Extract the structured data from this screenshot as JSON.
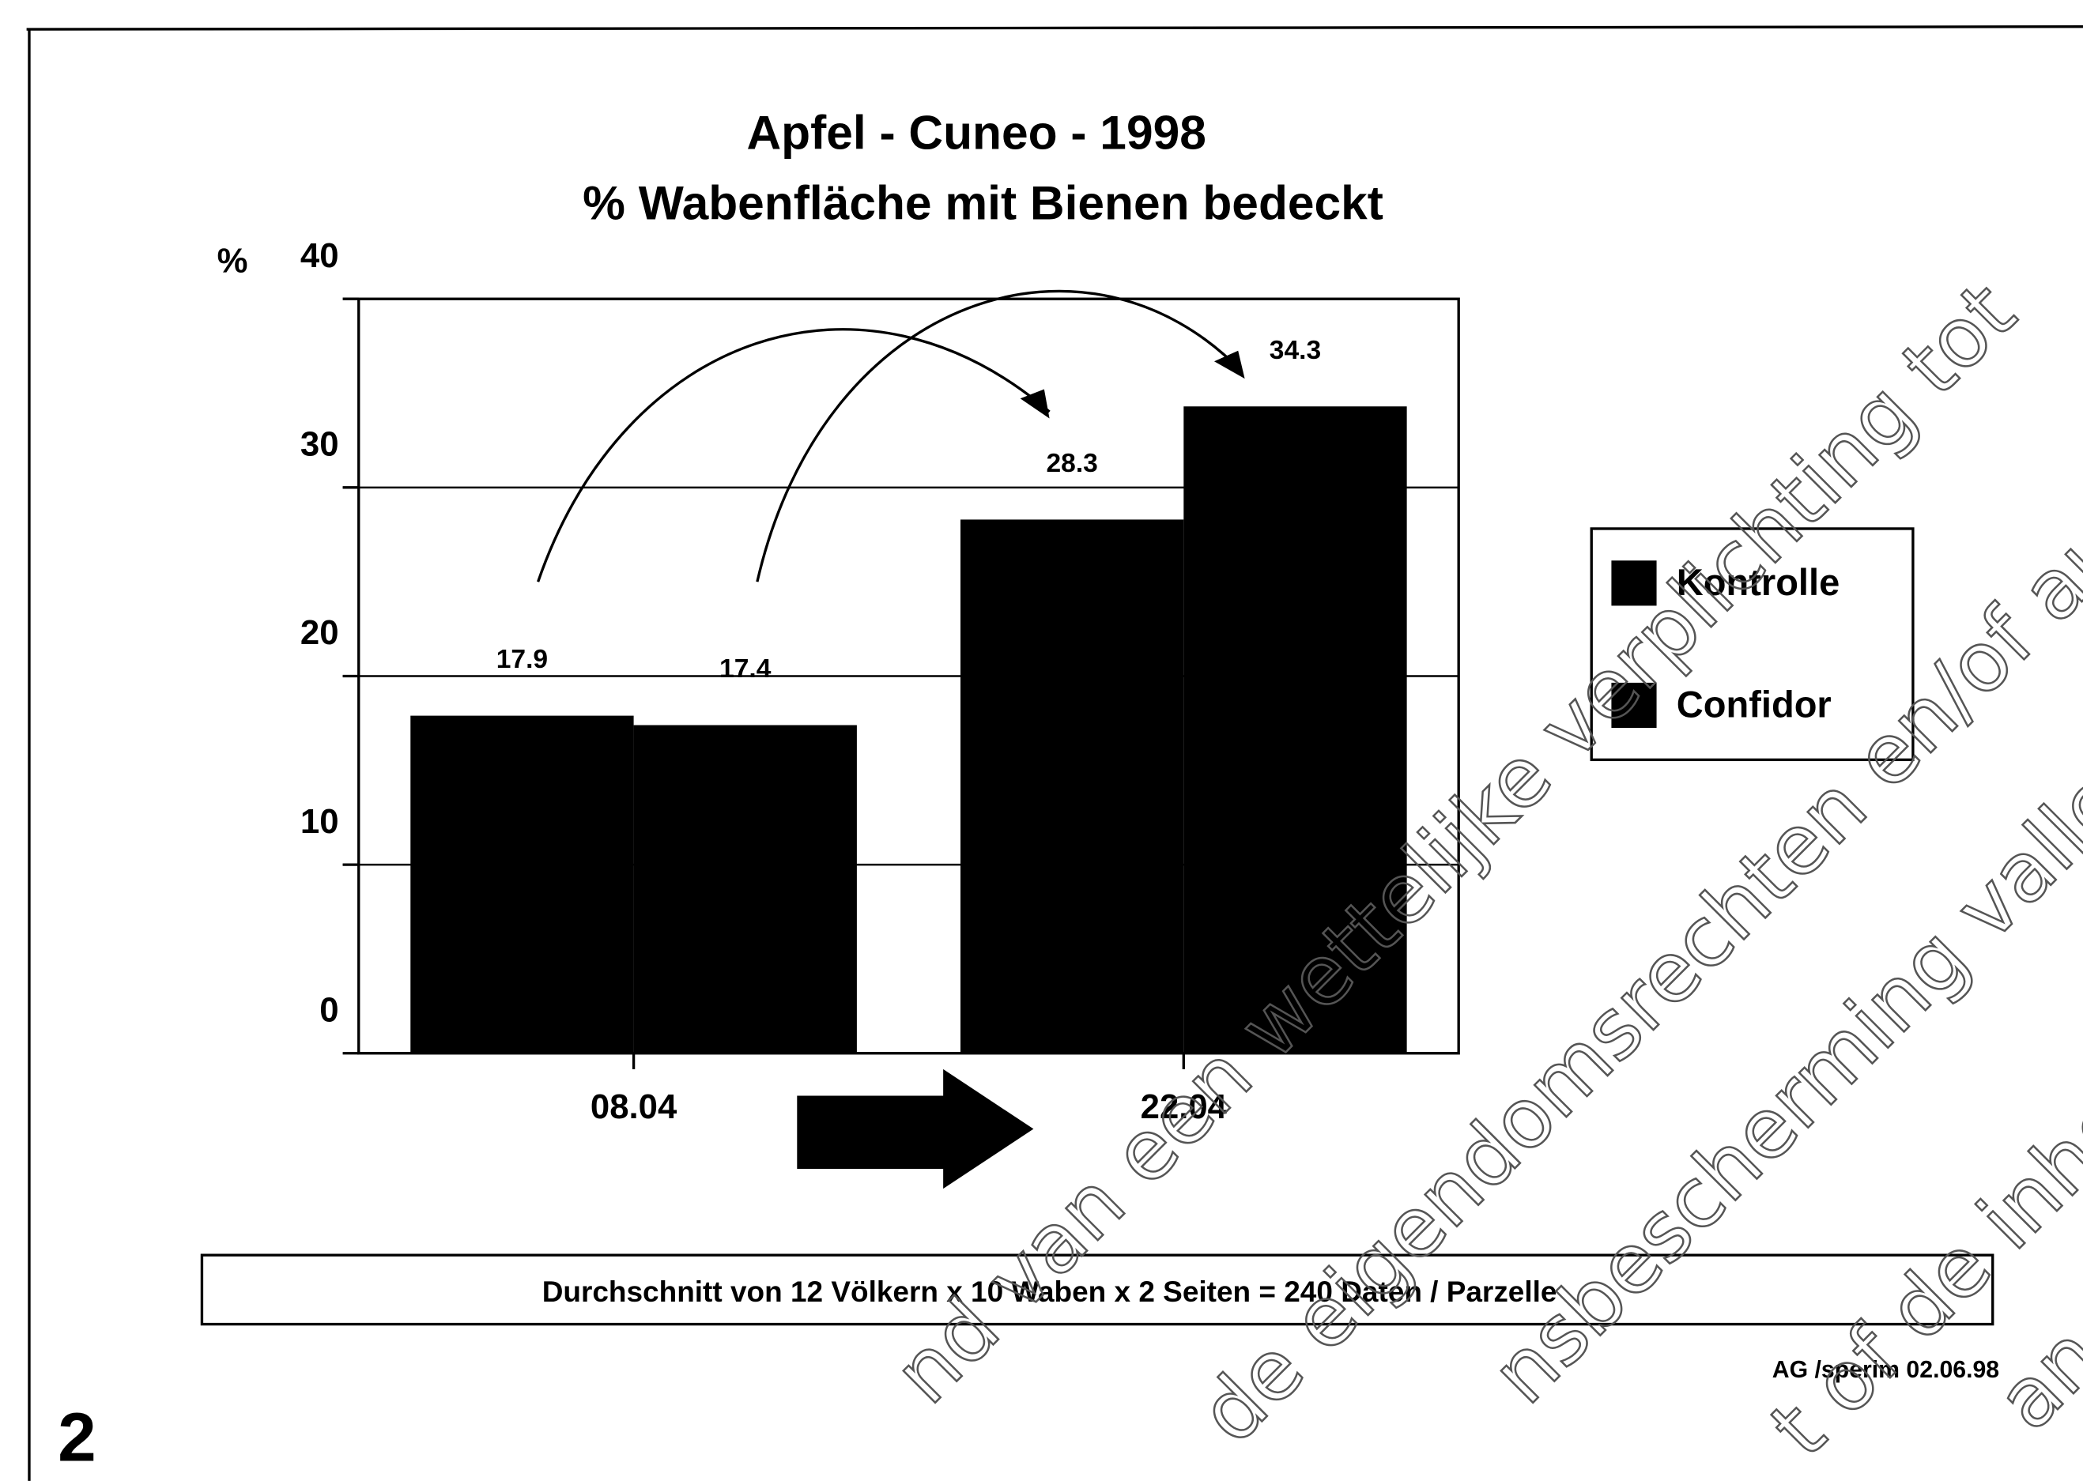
{
  "chart_data": {
    "type": "bar",
    "title": "Apfel - Cuneo - 1998",
    "subtitle": "% Wabenfläche mit Bienen bedeckt",
    "y_label": "%",
    "categories": [
      "08.04",
      "22.04"
    ],
    "series": [
      {
        "name": "Kontrolle",
        "color": "#000000",
        "values": [
          17.9,
          28.3
        ]
      },
      {
        "name": "Confidor",
        "color": "#000000",
        "values": [
          17.4,
          34.3
        ]
      }
    ],
    "ylim": [
      0,
      40
    ],
    "yticks": [
      0,
      10,
      20,
      30,
      40
    ],
    "grid": true,
    "legend": "right",
    "note": "Durchschnitt von 12 Völkern x 10 Waben x 2 Seiten = 240 Daten / Parzelle",
    "source": "AG /sperim 02.06.98"
  },
  "page_number": "2",
  "watermark": [
    "nd van een wettelijke verplichting tot",
    "de eigendomsrechten en/of auteurs",
    "nsbescherming vallen.",
    "t of de inhoud hierv",
    "an de rechten"
  ]
}
